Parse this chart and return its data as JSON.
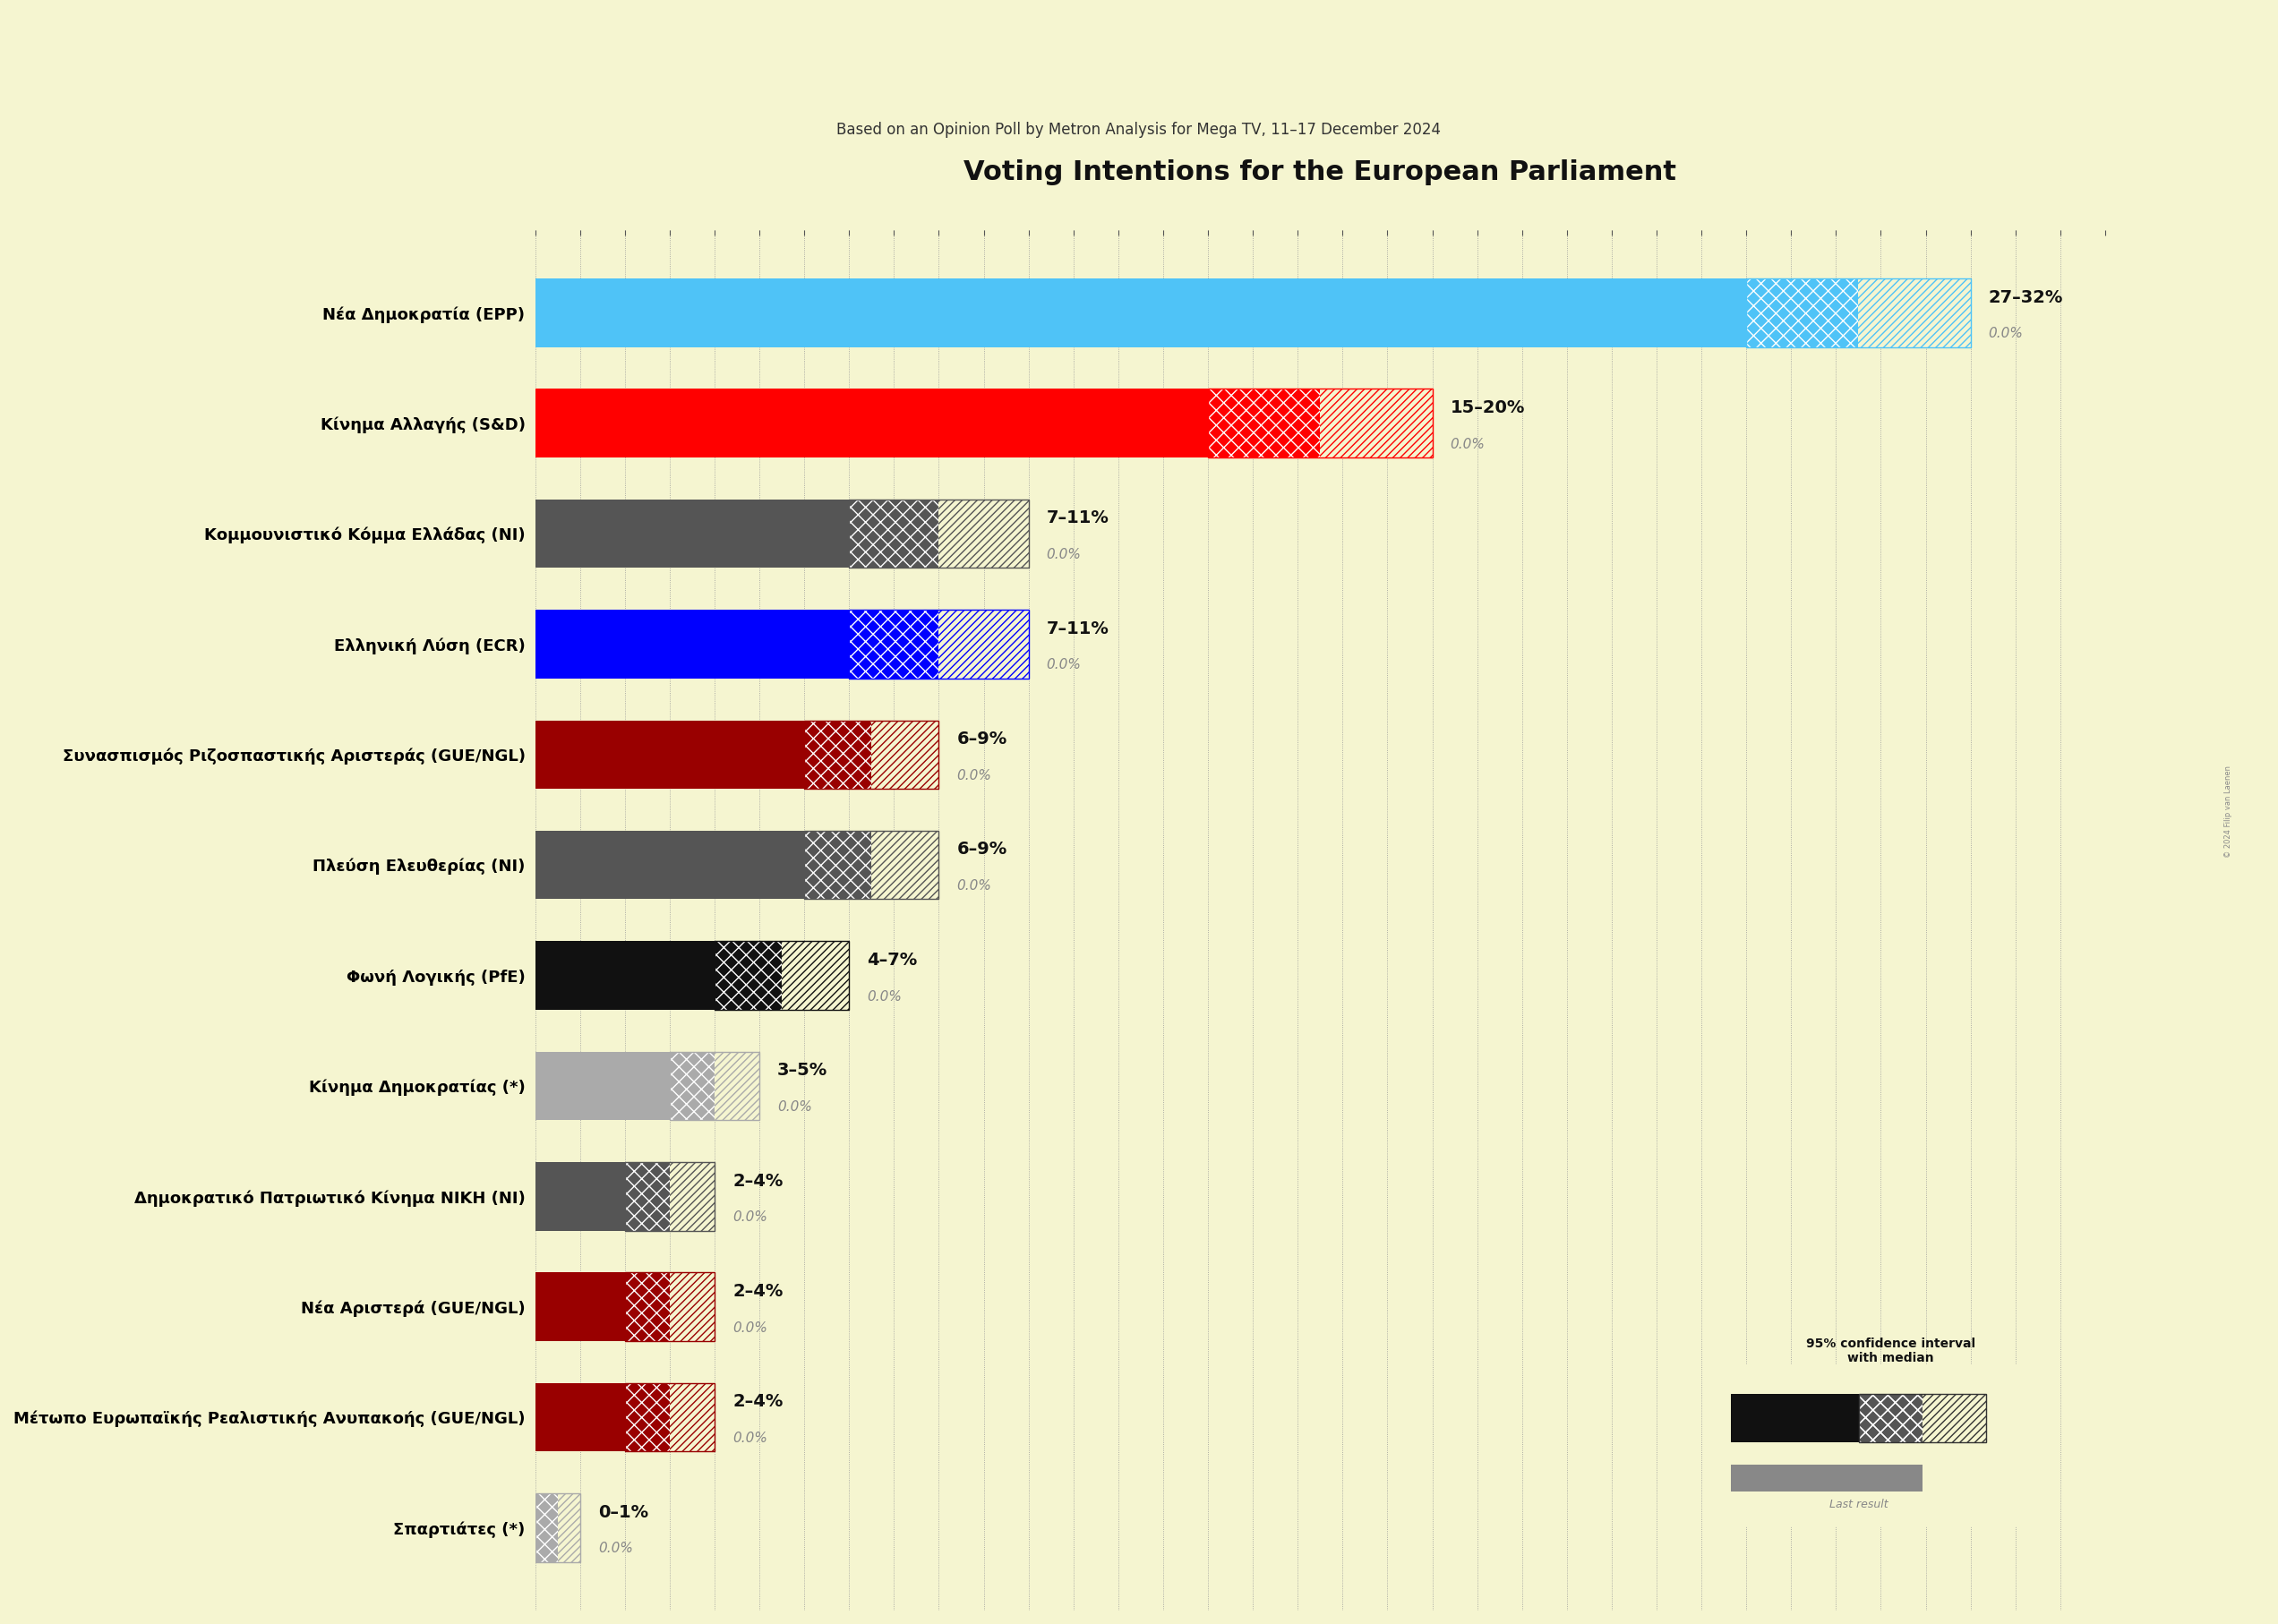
{
  "title": "Voting Intentions for the European Parliament",
  "subtitle": "Based on an Opinion Poll by Metron Analysis for Mega TV, 11–17 December 2024",
  "watermark": "© 2024 Filip van Laenen",
  "background_color": "#F5F5D0",
  "parties": [
    {
      "name": "Nέα Δημοκρατία (EPP)",
      "low": 27,
      "high": 32,
      "median": 0.0,
      "last": 0.0,
      "color": "#4FC3F7"
    },
    {
      "name": "Κίνημα Αλλαγής (S&D)",
      "low": 15,
      "high": 20,
      "median": 0.0,
      "last": 0.0,
      "color": "#FF0000"
    },
    {
      "name": "Κομμουνιστικό Κόμμα Ελλάδας (NI)",
      "low": 7,
      "high": 11,
      "median": 0.0,
      "last": 0.0,
      "color": "#555555"
    },
    {
      "name": "Ελληνική Λύση (ECR)",
      "low": 7,
      "high": 11,
      "median": 0.0,
      "last": 0.0,
      "color": "#0000FF"
    },
    {
      "name": "Συνασπισμός Ριζοσπαστικής Αριστεράς (GUE/NGL)",
      "low": 6,
      "high": 9,
      "median": 0.0,
      "last": 0.0,
      "color": "#990000"
    },
    {
      "name": "Πλεύση Ελευθερίας (NI)",
      "low": 6,
      "high": 9,
      "median": 0.0,
      "last": 0.0,
      "color": "#555555"
    },
    {
      "name": "Φωνή Λογικής (PfE)",
      "low": 4,
      "high": 7,
      "median": 0.0,
      "last": 0.0,
      "color": "#111111"
    },
    {
      "name": "Κίνημα Δημοκρατίας (*)",
      "low": 3,
      "high": 5,
      "median": 0.0,
      "last": 0.0,
      "color": "#AAAAAA"
    },
    {
      "name": "Δημοκρατικό Πατριωτικό Κίνημα ΝΙΚΗ (NI)",
      "low": 2,
      "high": 4,
      "median": 0.0,
      "last": 0.0,
      "color": "#555555"
    },
    {
      "name": "Νέα Αριστερά (GUE/NGL)",
      "low": 2,
      "high": 4,
      "median": 0.0,
      "last": 0.0,
      "color": "#990000"
    },
    {
      "name": "Μέτωπο Ευρωπαϊκής Ρεαλιστικής Ανυπακοής (GUE/NGL)",
      "low": 2,
      "high": 4,
      "median": 0.0,
      "last": 0.0,
      "color": "#990000"
    },
    {
      "name": "Σπαρτιάτες (*)",
      "low": 0,
      "high": 1,
      "median": 0.0,
      "last": 0.0,
      "color": "#AAAAAA"
    }
  ],
  "xlim_max": 35,
  "tick_interval": 5,
  "grid_color": "#999999",
  "bar_height": 0.62,
  "label_fontsize": 13,
  "range_fontsize": 14,
  "median_fontsize": 11,
  "legend_text1": "95% confidence interval",
  "legend_text2": "with median",
  "legend_text3": "Last result"
}
